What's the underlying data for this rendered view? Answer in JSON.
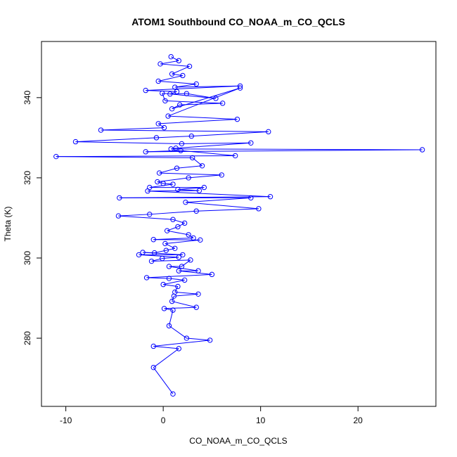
{
  "chart_data": {
    "type": "line",
    "title": "ATOM1 Southbound CO_NOAA_m_CO_QCLS",
    "xlabel": "CO_NOAA_m_CO_QCLS",
    "ylabel": "Theta (K)",
    "xlim": [
      -12.5,
      28
    ],
    "ylim": [
      263,
      354
    ],
    "x_ticks": [
      -10,
      0,
      10,
      20
    ],
    "y_ticks": [
      280,
      300,
      320,
      340
    ],
    "marker": "open-circle",
    "grid": false,
    "legend": "none",
    "colors": {
      "series": "#0000ff",
      "axis": "#000000",
      "background": "#ffffff"
    },
    "series": [
      {
        "points": [
          [
            0.8,
            350.2
          ],
          [
            1.6,
            349.2
          ],
          [
            -0.3,
            348.4
          ],
          [
            2.7,
            347.8
          ],
          [
            0.9,
            345.9
          ],
          [
            2.0,
            345.5
          ],
          [
            -0.5,
            344.1
          ],
          [
            3.4,
            343.4
          ],
          [
            1.2,
            342.6
          ],
          [
            7.9,
            342.9
          ],
          [
            -1.8,
            341.8
          ],
          [
            1.4,
            341.5
          ],
          [
            0.7,
            340.9
          ],
          [
            2.4,
            341.0
          ],
          [
            5.4,
            339.8
          ],
          [
            -0.1,
            341.1
          ],
          [
            0.2,
            339.2
          ],
          [
            6.1,
            338.6
          ],
          [
            1.7,
            338.2
          ],
          [
            0.9,
            337.2
          ],
          [
            7.9,
            342.4
          ],
          [
            0.5,
            335.4
          ],
          [
            7.6,
            334.6
          ],
          [
            -0.5,
            333.5
          ],
          [
            0.1,
            332.5
          ],
          [
            -6.4,
            331.9
          ],
          [
            10.8,
            331.5
          ],
          [
            2.9,
            330.4
          ],
          [
            -0.7,
            330.0
          ],
          [
            -9.0,
            329.0
          ],
          [
            1.9,
            328.5
          ],
          [
            9.0,
            328.7
          ],
          [
            1.3,
            327.4
          ],
          [
            0.8,
            327.2
          ],
          [
            26.6,
            327.0
          ],
          [
            -1.8,
            326.5
          ],
          [
            1.8,
            326.8
          ],
          [
            7.4,
            325.5
          ],
          [
            -11.0,
            325.3
          ],
          [
            3.0,
            325.0
          ],
          [
            4.0,
            323.0
          ],
          [
            1.4,
            322.4
          ],
          [
            -0.4,
            321.2
          ],
          [
            6.0,
            320.7
          ],
          [
            2.6,
            320.0
          ],
          [
            -0.6,
            319.0
          ],
          [
            0.0,
            318.6
          ],
          [
            1.0,
            318.4
          ],
          [
            -1.4,
            317.6
          ],
          [
            4.2,
            317.6
          ],
          [
            1.5,
            317.1
          ],
          [
            3.7,
            316.8
          ],
          [
            -1.6,
            316.7
          ],
          [
            11.0,
            315.3
          ],
          [
            -4.5,
            315.0
          ],
          [
            9.0,
            315.0
          ],
          [
            2.3,
            313.9
          ],
          [
            9.8,
            312.3
          ],
          [
            3.4,
            311.7
          ],
          [
            -1.4,
            310.9
          ],
          [
            -4.6,
            310.5
          ],
          [
            1.0,
            309.6
          ],
          [
            2.2,
            308.7
          ],
          [
            1.5,
            307.8
          ],
          [
            0.4,
            306.8
          ],
          [
            2.6,
            305.8
          ],
          [
            3.1,
            305.0
          ],
          [
            -1.0,
            304.6
          ],
          [
            3.8,
            304.5
          ],
          [
            0.2,
            303.6
          ],
          [
            1.2,
            302.4
          ],
          [
            0.3,
            301.9
          ],
          [
            -0.9,
            301.3
          ],
          [
            -2.1,
            301.4
          ],
          [
            2.0,
            300.8
          ],
          [
            -2.5,
            300.8
          ],
          [
            1.6,
            300.2
          ],
          [
            -0.1,
            299.9
          ],
          [
            -1.2,
            299.2
          ],
          [
            2.8,
            299.5
          ],
          [
            1.9,
            297.9
          ],
          [
            0.6,
            297.9
          ],
          [
            3.6,
            296.8
          ],
          [
            1.6,
            296.8
          ],
          [
            5.0,
            295.9
          ],
          [
            -1.7,
            295.1
          ],
          [
            0.6,
            294.9
          ],
          [
            2.2,
            294.5
          ],
          [
            0.0,
            293.4
          ],
          [
            1.5,
            292.9
          ],
          [
            1.2,
            291.5
          ],
          [
            3.6,
            291.0
          ],
          [
            1.1,
            290.5
          ],
          [
            0.9,
            289.2
          ],
          [
            3.4,
            287.7
          ],
          [
            0.1,
            287.4
          ],
          [
            1.0,
            287.0
          ],
          [
            0.6,
            283.1
          ],
          [
            2.4,
            280.0
          ],
          [
            4.8,
            279.5
          ],
          [
            -1.0,
            278.0
          ],
          [
            1.6,
            277.4
          ],
          [
            -1.0,
            272.7
          ],
          [
            1.0,
            266.1
          ]
        ]
      }
    ]
  }
}
